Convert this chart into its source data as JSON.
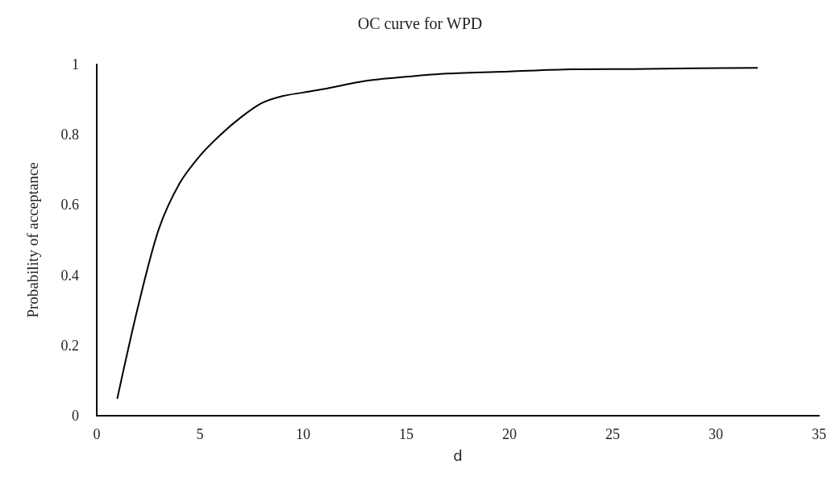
{
  "chart_data": {
    "type": "line",
    "title": "OC curve for WPD",
    "xlabel": "d",
    "ylabel": "Probability of acceptance",
    "series": [
      {
        "color": "#000000",
        "x": [
          1,
          2,
          3,
          4,
          5,
          6,
          7,
          8,
          9,
          10,
          11,
          13,
          15,
          17,
          20,
          23,
          26,
          29,
          32
        ],
        "values": [
          0.05,
          0.31,
          0.53,
          0.66,
          0.74,
          0.8,
          0.85,
          0.89,
          0.91,
          0.92,
          0.93,
          0.953,
          0.965,
          0.974,
          0.98,
          0.986,
          0.987,
          0.989,
          0.99
        ]
      }
    ],
    "xlim": [
      0,
      35
    ],
    "xticks": [
      0,
      5,
      10,
      15,
      20,
      25,
      30,
      35
    ],
    "ylim": [
      0,
      1
    ],
    "yticks": [
      0,
      0.2,
      0.4,
      0.6,
      0.8,
      1
    ],
    "grid": false,
    "marker": "none",
    "line_style": "solid"
  }
}
